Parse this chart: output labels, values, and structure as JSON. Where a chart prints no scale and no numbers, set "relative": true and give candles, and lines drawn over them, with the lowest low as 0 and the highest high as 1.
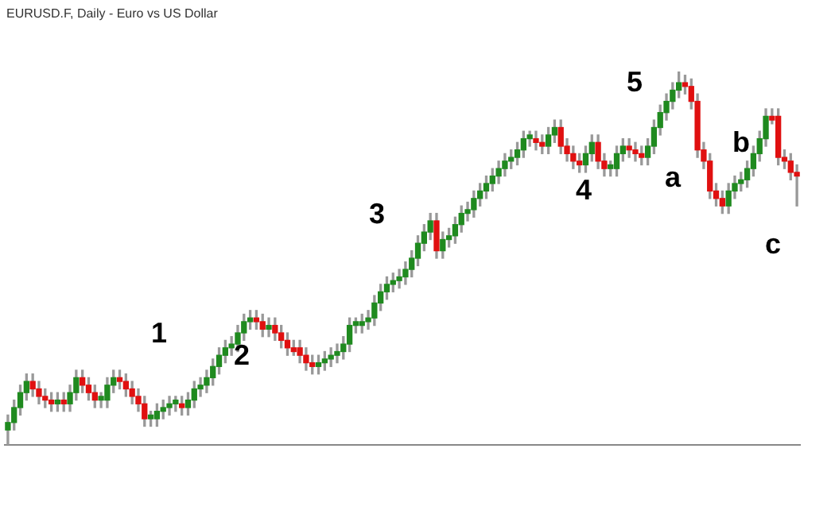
{
  "chart_data": {
    "type": "candlestick",
    "title": "EURUSD.F, Daily - Euro vs US Dollar",
    "relative": true,
    "categories": [
      null,
      null,
      null,
      null,
      null,
      null,
      null,
      null,
      null,
      null,
      null,
      null,
      null,
      null,
      null,
      null,
      null,
      null,
      null,
      null,
      null,
      null,
      null,
      null,
      null,
      null,
      null,
      null,
      null,
      null,
      null,
      null,
      null,
      null,
      null,
      null,
      null,
      null,
      null,
      null,
      null,
      null,
      null,
      null,
      null,
      null,
      null,
      null,
      null,
      null,
      null,
      null,
      null,
      null,
      null,
      null,
      null,
      null,
      null,
      null,
      null,
      null,
      null,
      null,
      null,
      null,
      null,
      null,
      null,
      null,
      null,
      null,
      null,
      null,
      null,
      null,
      null,
      null,
      null,
      null,
      null,
      null,
      null,
      null,
      null,
      null,
      null,
      null,
      null,
      null,
      null,
      null,
      null,
      null,
      null,
      null,
      null,
      null,
      null,
      null,
      null,
      null,
      null,
      null,
      null,
      null,
      null,
      null,
      null,
      null,
      null,
      null,
      null,
      null,
      null,
      null,
      null,
      null,
      null,
      null,
      null,
      null,
      null,
      null,
      null,
      null,
      null,
      null
    ],
    "ohlc": [
      [
        0.04,
        0.08,
        0,
        0.06
      ],
      [
        0.06,
        0.12,
        0.04,
        0.1
      ],
      [
        0.1,
        0.16,
        0.08,
        0.14
      ],
      [
        0.14,
        0.19,
        0.12,
        0.17
      ],
      [
        0.17,
        0.19,
        0.13,
        0.15
      ],
      [
        0.15,
        0.17,
        0.11,
        0.13
      ],
      [
        0.13,
        0.15,
        0.1,
        0.12
      ],
      [
        0.12,
        0.14,
        0.09,
        0.11
      ],
      [
        0.11,
        0.14,
        0.09,
        0.12
      ],
      [
        0.12,
        0.14,
        0.09,
        0.11
      ],
      [
        0.11,
        0.16,
        0.09,
        0.14
      ],
      [
        0.14,
        0.2,
        0.12,
        0.18
      ],
      [
        0.18,
        0.2,
        0.14,
        0.16
      ],
      [
        0.16,
        0.18,
        0.12,
        0.14
      ],
      [
        0.14,
        0.16,
        0.1,
        0.12
      ],
      [
        0.12,
        0.14,
        0.1,
        0.13
      ],
      [
        0.12,
        0.18,
        0.1,
        0.16
      ],
      [
        0.16,
        0.2,
        0.14,
        0.18
      ],
      [
        0.18,
        0.2,
        0.15,
        0.17
      ],
      [
        0.17,
        0.19,
        0.13,
        0.15
      ],
      [
        0.15,
        0.17,
        0.11,
        0.13
      ],
      [
        0.13,
        0.15,
        0.09,
        0.11
      ],
      [
        0.11,
        0.13,
        0.05,
        0.07
      ],
      [
        0.07,
        0.09,
        0.05,
        0.08
      ],
      [
        0.07,
        0.11,
        0.05,
        0.09
      ],
      [
        0.09,
        0.12,
        0.07,
        0.1
      ],
      [
        0.1,
        0.13,
        0.08,
        0.11
      ],
      [
        0.11,
        0.13,
        0.09,
        0.12
      ],
      [
        0.11,
        0.13,
        0.08,
        0.1
      ],
      [
        0.1,
        0.14,
        0.08,
        0.12
      ],
      [
        0.12,
        0.17,
        0.1,
        0.15
      ],
      [
        0.15,
        0.18,
        0.13,
        0.16
      ],
      [
        0.16,
        0.2,
        0.14,
        0.18
      ],
      [
        0.18,
        0.23,
        0.16,
        0.21
      ],
      [
        0.21,
        0.26,
        0.19,
        0.24
      ],
      [
        0.24,
        0.28,
        0.22,
        0.26
      ],
      [
        0.26,
        0.29,
        0.24,
        0.27
      ],
      [
        0.27,
        0.32,
        0.25,
        0.3
      ],
      [
        0.3,
        0.35,
        0.28,
        0.33
      ],
      [
        0.33,
        0.36,
        0.31,
        0.34
      ],
      [
        0.34,
        0.36,
        0.31,
        0.33
      ],
      [
        0.33,
        0.35,
        0.29,
        0.31
      ],
      [
        0.31,
        0.34,
        0.29,
        0.32
      ],
      [
        0.32,
        0.34,
        0.28,
        0.3
      ],
      [
        0.3,
        0.32,
        0.26,
        0.28
      ],
      [
        0.28,
        0.3,
        0.24,
        0.26
      ],
      [
        0.26,
        0.28,
        0.24,
        0.25
      ],
      [
        0.26,
        0.28,
        0.22,
        0.24
      ],
      [
        0.24,
        0.26,
        0.2,
        0.22
      ],
      [
        0.22,
        0.24,
        0.19,
        0.21
      ],
      [
        0.21,
        0.24,
        0.19,
        0.22
      ],
      [
        0.22,
        0.25,
        0.2,
        0.23
      ],
      [
        0.23,
        0.26,
        0.21,
        0.24
      ],
      [
        0.24,
        0.27,
        0.22,
        0.25
      ],
      [
        0.25,
        0.29,
        0.23,
        0.27
      ],
      [
        0.27,
        0.34,
        0.25,
        0.32
      ],
      [
        0.32,
        0.34,
        0.3,
        0.33
      ],
      [
        0.32,
        0.35,
        0.3,
        0.33
      ],
      [
        0.33,
        0.36,
        0.31,
        0.34
      ],
      [
        0.34,
        0.4,
        0.32,
        0.38
      ],
      [
        0.38,
        0.43,
        0.36,
        0.41
      ],
      [
        0.41,
        0.45,
        0.39,
        0.43
      ],
      [
        0.43,
        0.46,
        0.41,
        0.44
      ],
      [
        0.44,
        0.47,
        0.42,
        0.45
      ],
      [
        0.45,
        0.49,
        0.43,
        0.47
      ],
      [
        0.47,
        0.52,
        0.45,
        0.5
      ],
      [
        0.5,
        0.56,
        0.48,
        0.54
      ],
      [
        0.54,
        0.59,
        0.52,
        0.57
      ],
      [
        0.57,
        0.62,
        0.55,
        0.6
      ],
      [
        0.6,
        0.62,
        0.5,
        0.52
      ],
      [
        0.52,
        0.57,
        0.5,
        0.55
      ],
      [
        0.55,
        0.58,
        0.53,
        0.56
      ],
      [
        0.56,
        0.61,
        0.54,
        0.59
      ],
      [
        0.59,
        0.64,
        0.57,
        0.62
      ],
      [
        0.62,
        0.65,
        0.6,
        0.63
      ],
      [
        0.63,
        0.68,
        0.61,
        0.66
      ],
      [
        0.66,
        0.7,
        0.64,
        0.68
      ],
      [
        0.68,
        0.72,
        0.66,
        0.7
      ],
      [
        0.7,
        0.74,
        0.68,
        0.72
      ],
      [
        0.72,
        0.76,
        0.7,
        0.74
      ],
      [
        0.74,
        0.78,
        0.72,
        0.76
      ],
      [
        0.76,
        0.79,
        0.74,
        0.77
      ],
      [
        0.77,
        0.81,
        0.75,
        0.79
      ],
      [
        0.79,
        0.84,
        0.77,
        0.82
      ],
      [
        0.82,
        0.84,
        0.8,
        0.83
      ],
      [
        0.82,
        0.84,
        0.79,
        0.81
      ],
      [
        0.81,
        0.83,
        0.78,
        0.8
      ],
      [
        0.8,
        0.85,
        0.78,
        0.83
      ],
      [
        0.83,
        0.87,
        0.81,
        0.85
      ],
      [
        0.85,
        0.87,
        0.78,
        0.8
      ],
      [
        0.8,
        0.82,
        0.76,
        0.78
      ],
      [
        0.78,
        0.8,
        0.74,
        0.76
      ],
      [
        0.76,
        0.78,
        0.73,
        0.75
      ],
      [
        0.75,
        0.8,
        0.73,
        0.78
      ],
      [
        0.78,
        0.83,
        0.76,
        0.81
      ],
      [
        0.81,
        0.83,
        0.74,
        0.76
      ],
      [
        0.76,
        0.78,
        0.72,
        0.74
      ],
      [
        0.74,
        0.76,
        0.72,
        0.75
      ],
      [
        0.74,
        0.8,
        0.72,
        0.78
      ],
      [
        0.78,
        0.82,
        0.76,
        0.8
      ],
      [
        0.8,
        0.82,
        0.77,
        0.79
      ],
      [
        0.79,
        0.81,
        0.76,
        0.78
      ],
      [
        0.78,
        0.8,
        0.75,
        0.77
      ],
      [
        0.77,
        0.82,
        0.75,
        0.8
      ],
      [
        0.8,
        0.87,
        0.78,
        0.85
      ],
      [
        0.85,
        0.91,
        0.83,
        0.89
      ],
      [
        0.89,
        0.94,
        0.87,
        0.92
      ],
      [
        0.92,
        0.97,
        0.9,
        0.95
      ],
      [
        0.95,
        1,
        0.93,
        0.97
      ],
      [
        0.97,
        0.99,
        0.94,
        0.96
      ],
      [
        0.96,
        0.98,
        0.9,
        0.92
      ],
      [
        0.92,
        0.94,
        0.77,
        0.79
      ],
      [
        0.79,
        0.81,
        0.74,
        0.76
      ],
      [
        0.76,
        0.78,
        0.66,
        0.68
      ],
      [
        0.68,
        0.7,
        0.64,
        0.66
      ],
      [
        0.66,
        0.68,
        0.62,
        0.64
      ],
      [
        0.64,
        0.7,
        0.62,
        0.68
      ],
      [
        0.68,
        0.72,
        0.66,
        0.7
      ],
      [
        0.7,
        0.73,
        0.68,
        0.71
      ],
      [
        0.71,
        0.76,
        0.69,
        0.74
      ],
      [
        0.74,
        0.8,
        0.72,
        0.78
      ],
      [
        0.78,
        0.84,
        0.76,
        0.82
      ],
      [
        0.82,
        0.9,
        0.8,
        0.88
      ],
      [
        0.88,
        0.9,
        0.86,
        0.87
      ],
      [
        0.88,
        0.9,
        0.75,
        0.77
      ],
      [
        0.77,
        0.79,
        0.74,
        0.76
      ],
      [
        0.76,
        0.78,
        0.71,
        0.73
      ],
      [
        0.73,
        0.75,
        0.64,
        0.72
      ]
    ],
    "annotations": [
      "1",
      "2",
      "3",
      "4",
      "5",
      "a",
      "b",
      "c"
    ]
  }
}
